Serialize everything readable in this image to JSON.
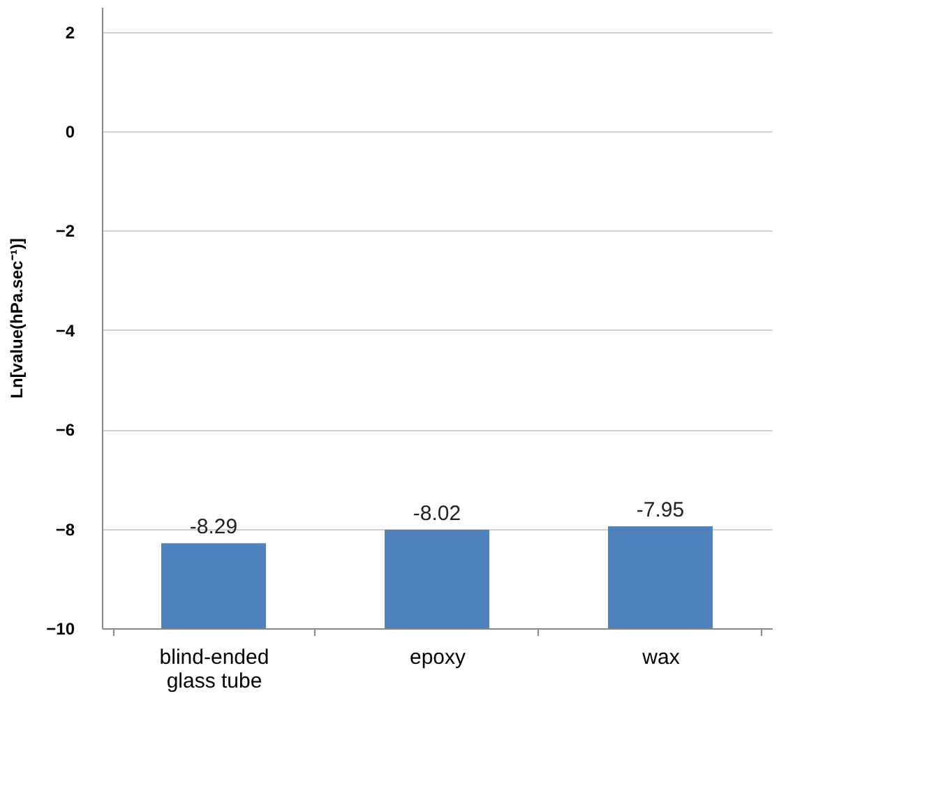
{
  "chart_data": {
    "type": "bar",
    "categories": [
      "blind-ended glass tube",
      "epoxy",
      "wax"
    ],
    "base": [
      -10,
      -10,
      -10
    ],
    "values": [
      1.71,
      1.98,
      2.05
    ],
    "value_labels": [
      "-8.29",
      "-8.02",
      "-7.95"
    ],
    "color": "#4f81bd",
    "ylabel": "Ln[value(hPa.sec⁻¹)]",
    "ylim": [
      -10,
      2.5
    ],
    "yticks": [
      -10,
      -8,
      -6,
      -4,
      -2,
      0,
      2
    ],
    "grid": "y"
  }
}
